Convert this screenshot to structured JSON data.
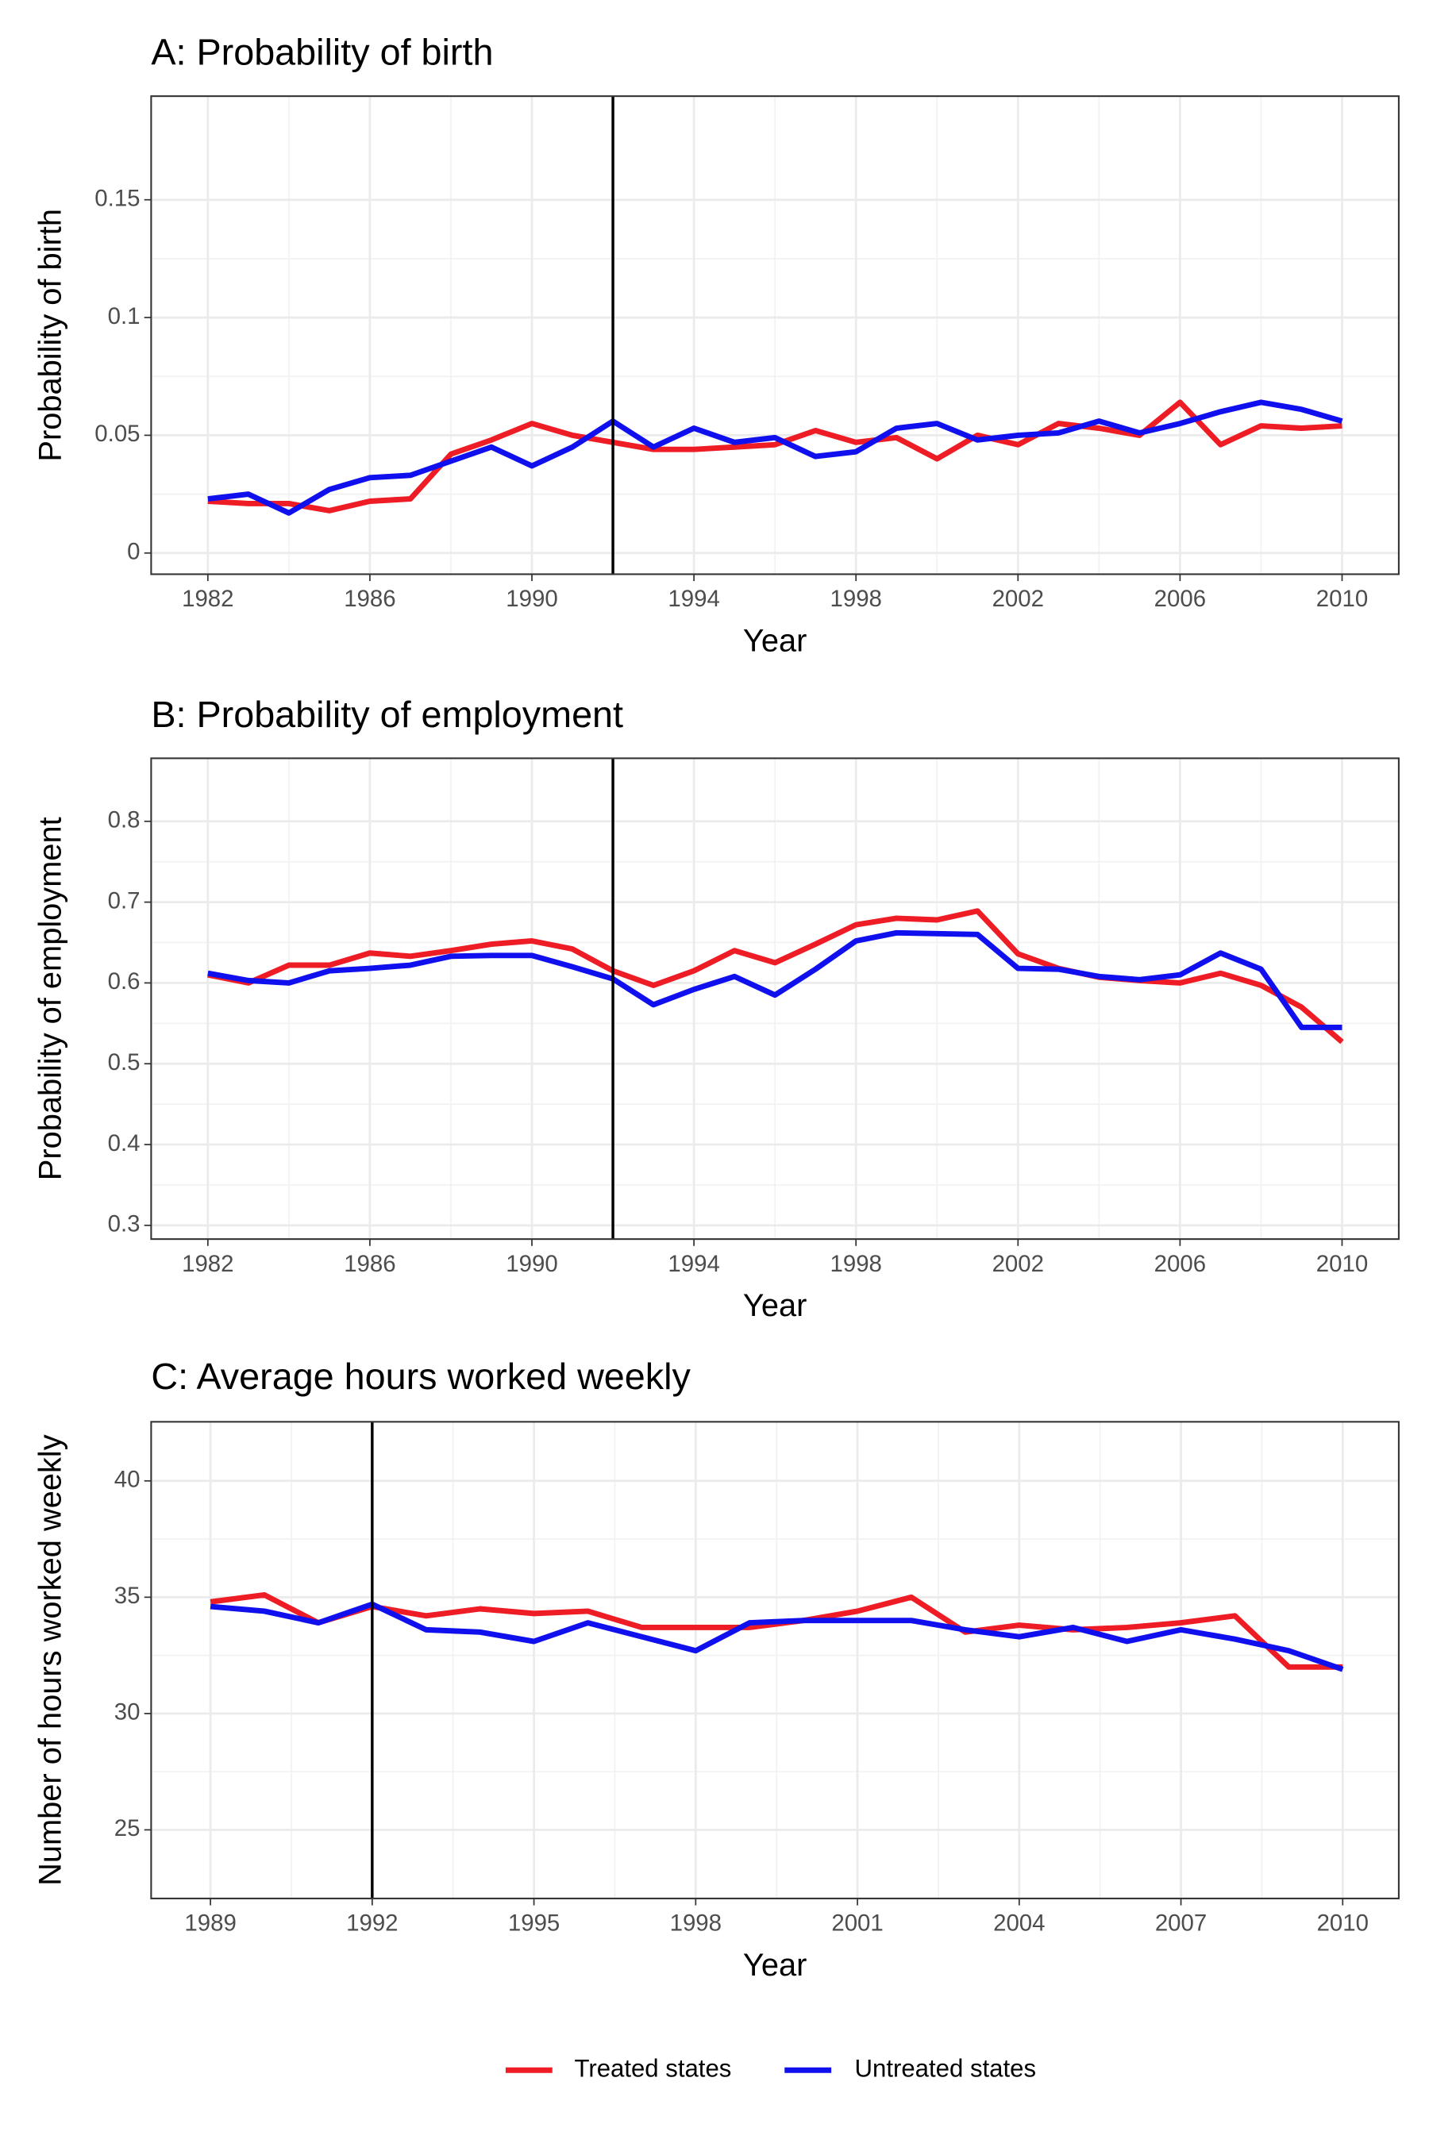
{
  "chart_data": [
    {
      "type": "line",
      "title": "A: Probability of birth",
      "x_label": "Year",
      "y_label": "Probability of birth",
      "x": [
        1982,
        1983,
        1984,
        1985,
        1986,
        1987,
        1988,
        1989,
        1990,
        1991,
        1992,
        1993,
        1994,
        1995,
        1996,
        1997,
        1998,
        1999,
        2000,
        2001,
        2002,
        2003,
        2004,
        2005,
        2006,
        2007,
        2008,
        2009,
        2010
      ],
      "series": [
        {
          "name": "Treated states",
          "color": "#ee1c25",
          "values": [
            0.022,
            0.021,
            0.021,
            0.018,
            0.022,
            0.023,
            0.042,
            0.048,
            0.055,
            0.05,
            0.047,
            0.044,
            0.044,
            0.045,
            0.046,
            0.052,
            0.047,
            0.049,
            0.04,
            0.05,
            0.046,
            0.055,
            0.053,
            0.05,
            0.064,
            0.046,
            0.054,
            0.053,
            0.054
          ]
        },
        {
          "name": "Untreated states",
          "color": "#1010ee",
          "values": [
            0.023,
            0.025,
            0.017,
            0.027,
            0.032,
            0.033,
            0.039,
            0.045,
            0.037,
            0.045,
            0.056,
            0.045,
            0.053,
            0.047,
            0.049,
            0.041,
            0.043,
            0.053,
            0.055,
            0.048,
            0.05,
            0.051,
            0.056,
            0.051,
            0.055,
            0.06,
            0.064,
            0.061,
            0.056
          ]
        }
      ],
      "xlim": [
        1980.6,
        2011.4
      ],
      "ylim": [
        -0.009,
        0.194
      ],
      "xticks": [
        1982,
        1986,
        1990,
        1994,
        1998,
        2002,
        2006,
        2010
      ],
      "yticks": [
        0,
        0.05,
        0.1,
        0.15
      ],
      "vline": 1992,
      "grid": true,
      "legend": "bottom"
    },
    {
      "type": "line",
      "title": "B: Probability of employment",
      "x_label": "Year",
      "y_label": "Probability of employment",
      "x": [
        1982,
        1983,
        1984,
        1985,
        1986,
        1987,
        1988,
        1989,
        1990,
        1991,
        1992,
        1993,
        1994,
        1995,
        1996,
        1997,
        1998,
        1999,
        2000,
        2001,
        2002,
        2003,
        2004,
        2005,
        2006,
        2007,
        2008,
        2009,
        2010
      ],
      "series": [
        {
          "name": "Treated states",
          "color": "#ee1c25",
          "values": [
            0.61,
            0.6,
            0.622,
            0.622,
            0.637,
            0.633,
            0.64,
            0.648,
            0.652,
            0.642,
            0.615,
            0.597,
            0.615,
            0.64,
            0.625,
            0.648,
            0.672,
            0.68,
            0.678,
            0.689,
            0.636,
            0.618,
            0.607,
            0.603,
            0.6,
            0.612,
            0.597,
            0.57,
            0.527
          ]
        },
        {
          "name": "Untreated states",
          "color": "#1010ee",
          "values": [
            0.612,
            0.603,
            0.6,
            0.615,
            0.618,
            0.622,
            0.633,
            0.634,
            0.634,
            0.62,
            0.605,
            0.573,
            0.592,
            0.608,
            0.585,
            0.617,
            0.652,
            0.662,
            0.661,
            0.66,
            0.618,
            0.617,
            0.608,
            0.604,
            0.61,
            0.637,
            0.617,
            0.545,
            0.545
          ]
        }
      ],
      "xlim": [
        1980.6,
        2011.4
      ],
      "ylim": [
        0.283,
        0.878
      ],
      "xticks": [
        1982,
        1986,
        1990,
        1994,
        1998,
        2002,
        2006,
        2010
      ],
      "yticks": [
        0.3,
        0.4,
        0.5,
        0.6,
        0.7,
        0.8
      ],
      "vline": 1992,
      "grid": true,
      "legend": "bottom"
    },
    {
      "type": "line",
      "title": "C: Average hours worked weekly",
      "x_label": "Year",
      "y_label": "Number of hours worked weekly",
      "x": [
        1989,
        1990,
        1991,
        1992,
        1993,
        1994,
        1995,
        1996,
        1997,
        1998,
        1999,
        2000,
        2001,
        2002,
        2003,
        2004,
        2005,
        2006,
        2007,
        2008,
        2009,
        2010
      ],
      "series": [
        {
          "name": "Treated states",
          "color": "#ee1c25",
          "values": [
            34.8,
            35.1,
            33.9,
            34.6,
            34.2,
            34.5,
            34.3,
            34.4,
            33.7,
            33.7,
            33.7,
            34.0,
            34.4,
            35.0,
            33.5,
            33.8,
            33.6,
            33.7,
            33.9,
            34.2,
            32.0,
            32.0
          ]
        },
        {
          "name": "Untreated states",
          "color": "#1010ee",
          "values": [
            34.6,
            34.4,
            33.9,
            34.7,
            33.6,
            33.5,
            33.1,
            33.9,
            33.3,
            32.7,
            33.9,
            34.0,
            34.0,
            34.0,
            33.6,
            33.3,
            33.7,
            33.1,
            33.6,
            33.2,
            32.7,
            31.9
          ]
        }
      ],
      "xlim": [
        1987.9,
        2011.04
      ],
      "ylim": [
        22.05,
        42.54
      ],
      "xticks": [
        1989,
        1992,
        1995,
        1998,
        2001,
        2004,
        2007,
        2010
      ],
      "yticks": [
        25,
        30,
        35,
        40
      ],
      "vline": 1992,
      "grid": true,
      "legend": "bottom"
    }
  ]
}
